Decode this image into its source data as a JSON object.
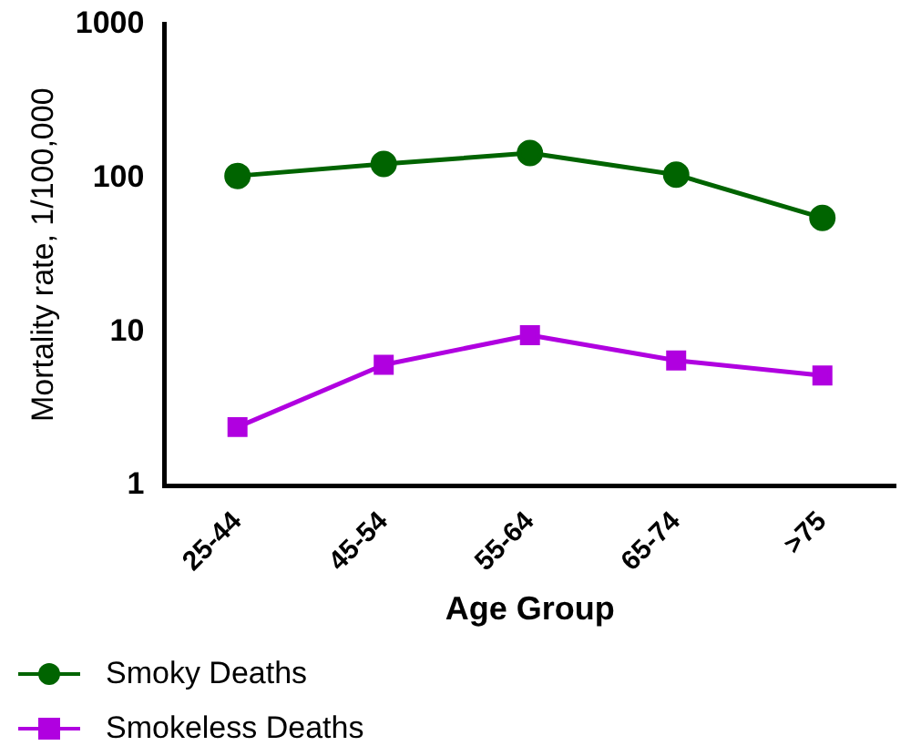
{
  "chart_data": {
    "type": "line",
    "xlabel": "Age Group",
    "ylabel": "Mortality rate, 1/100,000",
    "categories": [
      "25-44",
      "45-54",
      "55-64",
      "65-74",
      ">75"
    ],
    "series": [
      {
        "name": "Smoky Deaths",
        "color": "#006400",
        "marker": "circle",
        "values": [
          103,
          123,
          145,
          105,
          55
        ]
      },
      {
        "name": "Smokeless Deaths",
        "color": "#b000e0",
        "marker": "square",
        "values": [
          2.4,
          6.1,
          9.5,
          6.5,
          5.2
        ]
      }
    ],
    "log": true,
    "ylim": [
      1,
      1000
    ],
    "yticks": [
      1,
      10,
      100,
      1000
    ],
    "grid": false,
    "legend": "bottom left"
  }
}
